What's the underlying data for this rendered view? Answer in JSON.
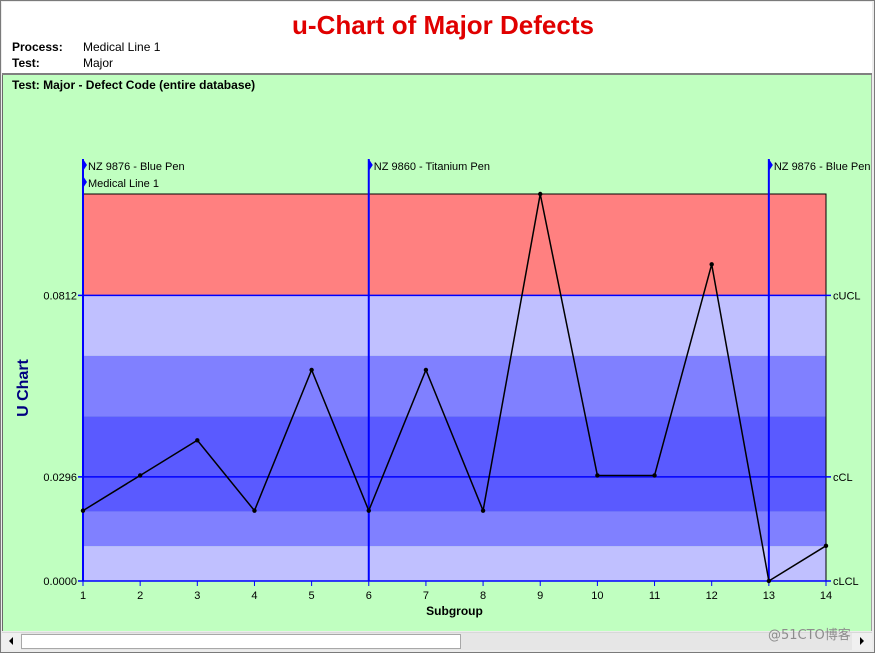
{
  "chart_data": {
    "type": "line",
    "title": "u-Chart of Major Defects",
    "subtitle": "Test: Major - Defect Code (entire database)",
    "xlabel": "Subgroup",
    "ylabel": "U Chart",
    "x": [
      1,
      2,
      3,
      4,
      5,
      6,
      7,
      8,
      9,
      10,
      11,
      12,
      13,
      14
    ],
    "y": [
      0.02,
      0.03,
      0.04,
      0.02,
      0.06,
      0.02,
      0.06,
      0.02,
      0.11,
      0.03,
      0.03,
      0.09,
      0.0,
      0.01
    ],
    "xlim": [
      1,
      14
    ],
    "ylim": [
      0,
      0.11
    ],
    "grid": false,
    "control_limits": [
      {
        "label": "cUCL",
        "value": 0.0812,
        "tick_label": "0.0812"
      },
      {
        "label": "cCL",
        "value": 0.0296,
        "tick_label": "0.0296"
      },
      {
        "label": "cLCL",
        "value": 0.0,
        "tick_label": "0.0000"
      }
    ],
    "annotations": [
      {
        "x": 1,
        "labels": [
          "NZ 9876 - Blue Pen",
          "Medical Line 1"
        ]
      },
      {
        "x": 6,
        "labels": [
          "NZ 9860 - Titanium Pen"
        ]
      },
      {
        "x": 13,
        "labels": [
          "NZ 9876 - Blue Pen"
        ]
      }
    ],
    "colors": {
      "title": "#E00000",
      "background": "#C0FFC0",
      "beyond_limits_zone": "#FF8080",
      "zone_outer": "#C0C0FF",
      "zone_middle": "#8080FF",
      "zone_inner": "#5A5AFF",
      "limit_lines": "#0000FF",
      "annotation_lines": "#0000FF",
      "data_line": "#000000",
      "ylabel": "#000080"
    }
  },
  "header": {
    "process_label": "Process:",
    "process_value": "Medical Line 1",
    "test_label": "Test:",
    "test_value": "Major"
  },
  "scrollbar": {
    "left_icon": "triangle-left-icon",
    "right_icon": "triangle-right-icon",
    "scroll_position": 0,
    "visible_fraction": 0.53
  },
  "watermark": "@51CTO博客"
}
